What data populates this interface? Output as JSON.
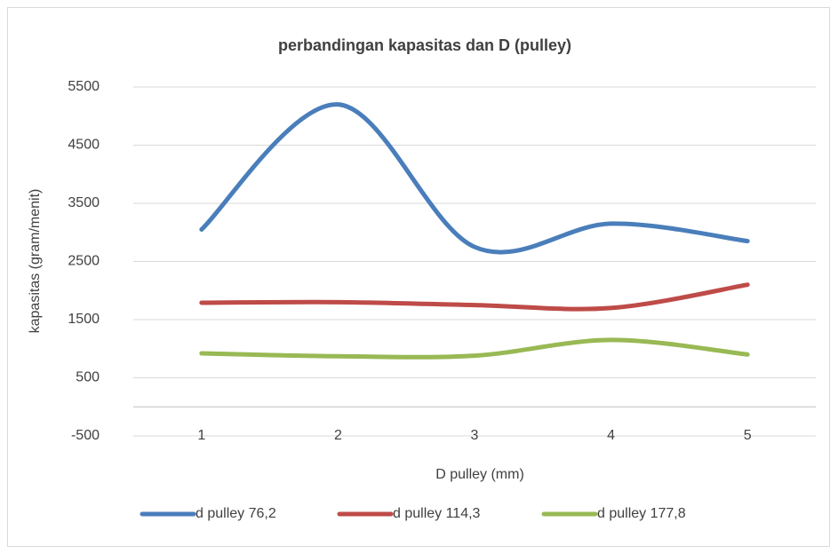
{
  "chart_data": {
    "type": "line",
    "title": "perbandingan kapasitas dan D (pulley)",
    "x_label": "D pulley (mm)",
    "y_label": "kapasitas (gram/menit)",
    "categories": [
      "1",
      "2",
      "3",
      "4",
      "5"
    ],
    "series": [
      {
        "name": "d pulley 76,2",
        "color": "#4a7ebb",
        "values": [
          3050,
          5200,
          2750,
          3150,
          2850
        ]
      },
      {
        "name": "d pulley 114,3",
        "color": "#be4b48",
        "values": [
          1790,
          1800,
          1750,
          1700,
          2100
        ]
      },
      {
        "name": "d pulley 177,8",
        "color": "#98b954",
        "values": [
          920,
          870,
          880,
          1150,
          900
        ]
      }
    ],
    "ylim": [
      -500,
      5500
    ],
    "yticks": [
      -500,
      500,
      1500,
      2500,
      3500,
      4500,
      5500
    ],
    "grid": true,
    "smooth": true,
    "legend": "bottom"
  }
}
